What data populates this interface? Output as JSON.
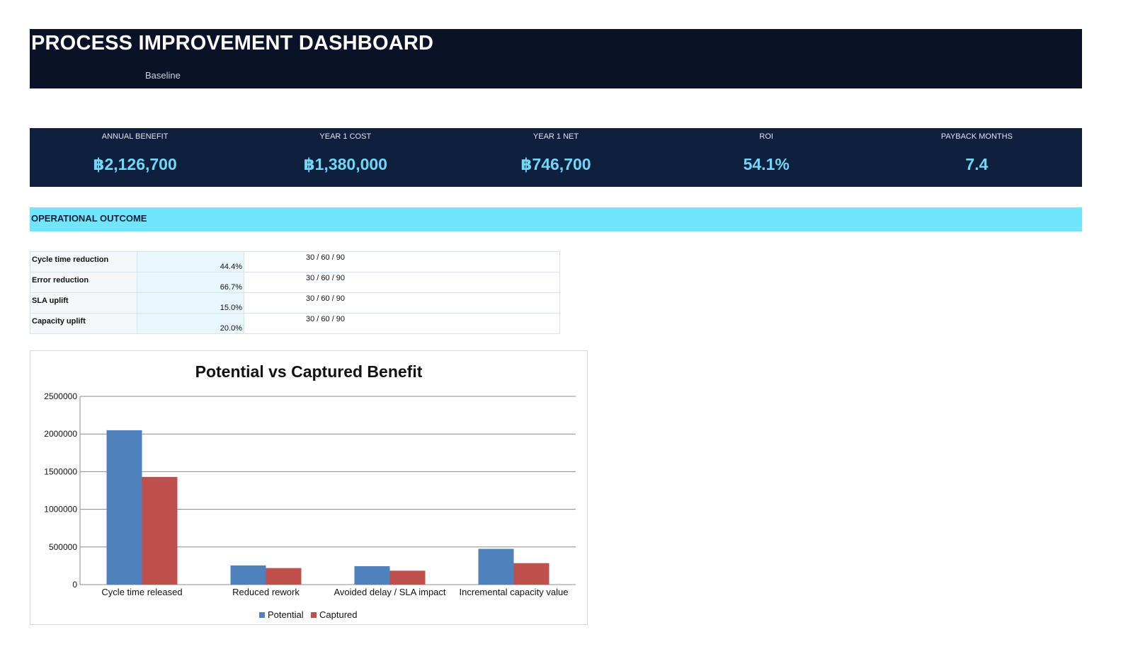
{
  "header": {
    "title": "PROCESS IMPROVEMENT DASHBOARD",
    "subtitle": "Baseline"
  },
  "kpis": [
    {
      "label": "ANNUAL BENEFIT",
      "value": "฿2,126,700"
    },
    {
      "label": "YEAR 1 COST",
      "value": "฿1,380,000"
    },
    {
      "label": "YEAR 1 NET",
      "value": "฿746,700"
    },
    {
      "label": "ROI",
      "value": "54.1%"
    },
    {
      "label": "PAYBACK MONTHS",
      "value": "7.4"
    }
  ],
  "section": {
    "title": "OPERATIONAL OUTCOME"
  },
  "metrics": [
    {
      "label": "Cycle time reduction",
      "value": "44.4%",
      "target": "30 / 60 / 90"
    },
    {
      "label": "Error reduction",
      "value": "66.7%",
      "target": "30 / 60 / 90"
    },
    {
      "label": "SLA uplift",
      "value": "15.0%",
      "target": "30 / 60 / 90"
    },
    {
      "label": "Capacity uplift",
      "value": "20.0%",
      "target": "30 / 60 / 90"
    }
  ],
  "colors": {
    "potential": "#4f81bd",
    "captured": "#c0504d",
    "header_bg": "#0a1228",
    "kpi_bg": "#0f1f3e",
    "kpi_value": "#6fd8f5",
    "section_bg": "#6fe6fb"
  },
  "chart_data": {
    "type": "bar",
    "title": "Potential vs Captured Benefit",
    "categories": [
      "Cycle time released",
      "Reduced rework",
      "Avoided delay / SLA impact",
      "Incremental capacity value"
    ],
    "series": [
      {
        "name": "Potential",
        "values": [
          2050000,
          255000,
          245000,
          475000
        ]
      },
      {
        "name": "Captured",
        "values": [
          1430000,
          220000,
          185000,
          285000
        ]
      }
    ],
    "ylim": [
      0,
      2500000
    ],
    "yticks": [
      0,
      500000,
      1000000,
      1500000,
      2000000,
      2500000
    ],
    "grid": true,
    "legend": "bottom"
  }
}
